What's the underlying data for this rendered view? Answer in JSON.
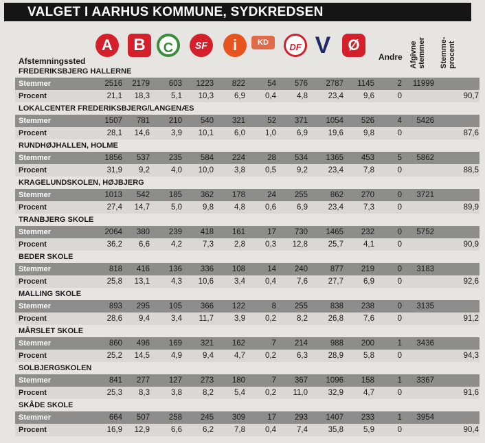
{
  "header": {
    "title": "VALGET I AARHUS KOMMUNE, SYDKREDSEN",
    "icon": "!"
  },
  "columns": {
    "place": "Afstemningssted",
    "parties": [
      "A",
      "B",
      "C",
      "SF",
      "i",
      "KD",
      "DF",
      "V",
      "Ø"
    ],
    "other": "Andre",
    "cast": "Afgivne stemmer",
    "turnout": "Stemme-procent"
  },
  "sections": [
    {
      "name": "FREDERIKSBJERG HALLERNE",
      "stemmer": {
        "label": "Stemmer",
        "cells": [
          "2516",
          "2179",
          "603",
          "1223",
          "822",
          "54",
          "576",
          "2787",
          "1145",
          "2",
          "11999"
        ]
      },
      "procent": {
        "label": "Procent",
        "cells": [
          "21,1",
          "18,3",
          "5,1",
          "10,3",
          "6,9",
          "0,4",
          "4,8",
          "23,4",
          "9,6",
          "0",
          "90,7"
        ]
      }
    },
    {
      "name": "LOKALCENTER FREDERIKSBJERG/LANGENÆS",
      "stemmer": {
        "label": "Stemmer",
        "cells": [
          "1507",
          "781",
          "210",
          "540",
          "321",
          "52",
          "371",
          "1054",
          "526",
          "4",
          "5426"
        ]
      },
      "procent": {
        "label": "Procent",
        "cells": [
          "28,1",
          "14,6",
          "3,9",
          "10,1",
          "6,0",
          "1,0",
          "6,9",
          "19,6",
          "9,8",
          "0",
          "87,6"
        ]
      }
    },
    {
      "name": "RUNDHØJHALLEN, HOLME",
      "stemmer": {
        "label": "Stemmer",
        "cells": [
          "1856",
          "537",
          "235",
          "584",
          "224",
          "28",
          "534",
          "1365",
          "453",
          "5",
          "5862"
        ]
      },
      "procent": {
        "label": "Procent",
        "cells": [
          "31,9",
          "9,2",
          "4,0",
          "10,0",
          "3,8",
          "0,5",
          "9,2",
          "23,4",
          "7,8",
          "0",
          "88,5"
        ]
      }
    },
    {
      "name": "KRAGELUNDSKOLEN, HØJBJERG",
      "stemmer": {
        "label": "Stemmer",
        "cells": [
          "1013",
          "542",
          "185",
          "362",
          "178",
          "24",
          "255",
          "862",
          "270",
          "0",
          "3721"
        ]
      },
      "procent": {
        "label": "Procent",
        "cells": [
          "27,4",
          "14,7",
          "5,0",
          "9,8",
          "4,8",
          "0,6",
          "6,9",
          "23,4",
          "7,3",
          "0",
          "89,9"
        ]
      }
    },
    {
      "name": "TRANBJERG SKOLE",
      "stemmer": {
        "label": "Stemmer",
        "cells": [
          "2064",
          "380",
          "239",
          "418",
          "161",
          "17",
          "730",
          "1465",
          "232",
          "0",
          "5752"
        ]
      },
      "procent": {
        "label": "Procent",
        "cells": [
          "36,2",
          "6,6",
          "4,2",
          "7,3",
          "2,8",
          "0,3",
          "12,8",
          "25,7",
          "4,1",
          "0",
          "90,9"
        ]
      }
    },
    {
      "name": "BEDER SKOLE",
      "stemmer": {
        "label": "Stemmer",
        "cells": [
          "818",
          "416",
          "136",
          "336",
          "108",
          "14",
          "240",
          "877",
          "219",
          "0",
          "3183"
        ]
      },
      "procent": {
        "label": "Procent",
        "cells": [
          "25,8",
          "13,1",
          "4,3",
          "10,6",
          "3,4",
          "0,4",
          "7,6",
          "27,7",
          "6,9",
          "0",
          "92,6"
        ]
      }
    },
    {
      "name": "MALLING SKOLE",
      "stemmer": {
        "label": "Stemmer",
        "cells": [
          "893",
          "295",
          "105",
          "366",
          "122",
          "8",
          "255",
          "838",
          "238",
          "0",
          "3135"
        ]
      },
      "procent": {
        "label": "Procent",
        "cells": [
          "28,6",
          "9,4",
          "3,4",
          "11,7",
          "3,9",
          "0,2",
          "8,2",
          "26,8",
          "7,6",
          "0",
          "91,2"
        ]
      }
    },
    {
      "name": "MÅRSLET SKOLE",
      "stemmer": {
        "label": "Stemmer",
        "cells": [
          "860",
          "496",
          "169",
          "321",
          "162",
          "7",
          "214",
          "988",
          "200",
          "1",
          "3436"
        ]
      },
      "procent": {
        "label": "Procent",
        "cells": [
          "25,2",
          "14,5",
          "4,9",
          "9,4",
          "4,7",
          "0,2",
          "6,3",
          "28,9",
          "5,8",
          "0",
          "94,3"
        ]
      }
    },
    {
      "name": "SOLBJERGSKOLEN",
      "stemmer": {
        "label": "Stemmer",
        "cells": [
          "841",
          "277",
          "127",
          "273",
          "180",
          "7",
          "367",
          "1096",
          "158",
          "1",
          "3367"
        ]
      },
      "procent": {
        "label": "Procent",
        "cells": [
          "25,3",
          "8,3",
          "3,8",
          "8,2",
          "5,4",
          "0,2",
          "11,0",
          "32,9",
          "4,7",
          "0",
          "91,6"
        ]
      }
    },
    {
      "name": "SKÅDE SKOLE",
      "stemmer": {
        "label": "Stemmer",
        "cells": [
          "664",
          "507",
          "258",
          "245",
          "309",
          "17",
          "293",
          "1407",
          "233",
          "1",
          "3954"
        ]
      },
      "procent": {
        "label": "Procent",
        "cells": [
          "16,9",
          "12,9",
          "6,6",
          "6,2",
          "7,8",
          "0,4",
          "7,4",
          "35,8",
          "5,9",
          "0",
          "90,4"
        ]
      }
    }
  ]
}
